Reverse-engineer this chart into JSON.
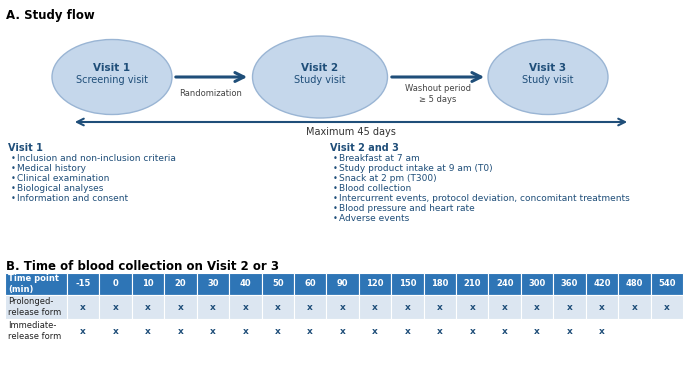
{
  "title_a": "A. Study flow",
  "title_b": "B. Time of blood collection on Visit 2 or 3",
  "ellipse_color": "#c5d7eb",
  "ellipse_edge_color": "#9ab5d4",
  "arrow_color": "#1f4e79",
  "text_col_dark": "#1f4e79",
  "text_col_body": "#1f4e79",
  "header_bg": "#2e75b6",
  "row1_bg": "#dce6f1",
  "row2_bg": "#ffffff",
  "visit1_line1": "Visit 1",
  "visit1_line2": "Screening visit",
  "visit2_line1": "Visit 2",
  "visit2_line2": "Study visit",
  "visit3_line1": "Visit 3",
  "visit3_line2": "Study visit",
  "label_random": "Randomization",
  "label_washout": "Washout period\n≥ 5 days",
  "label_max": "Maximum 45 days",
  "visit1_header": "Visit 1",
  "visit1_bullets": [
    "Inclusion and non-inclusion criteria",
    "Medical history",
    "Clinical examination",
    "Biological analyses",
    "Information and consent"
  ],
  "visit23_header": "Visit 2 and 3",
  "visit23_bullets": [
    "Breakfast at 7 am",
    "Study product intake at 9 am (T0)",
    "Snack at 2 pm (T300)",
    "Blood collection",
    "Intercurrent events, protocol deviation, concomitant treatments",
    "Blood pressure and heart rate",
    "Adverse events"
  ],
  "time_points": [
    "-15",
    "0",
    "10",
    "20",
    "30",
    "40",
    "50",
    "60",
    "90",
    "120",
    "150",
    "180",
    "210",
    "240",
    "300",
    "360",
    "420",
    "480",
    "540"
  ],
  "row1_label": "Prolonged-\nrelease form",
  "row1_marks": [
    1,
    1,
    1,
    1,
    1,
    1,
    1,
    1,
    1,
    1,
    1,
    1,
    1,
    1,
    1,
    1,
    1,
    1,
    1
  ],
  "row2_label": "Immediate-\nrelease form",
  "row2_marks": [
    1,
    1,
    1,
    1,
    1,
    1,
    1,
    1,
    1,
    1,
    1,
    1,
    1,
    1,
    1,
    1,
    1,
    0,
    0
  ]
}
